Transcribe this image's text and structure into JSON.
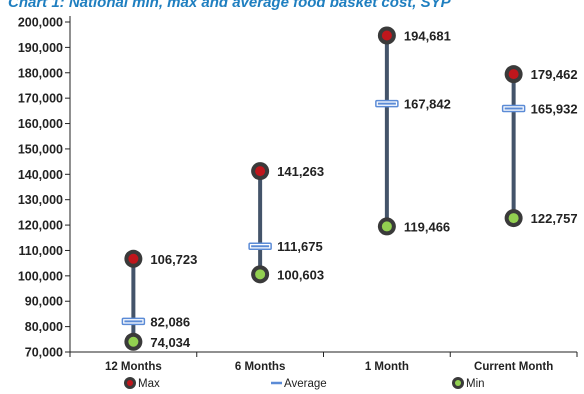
{
  "title": "Chart 1: National min, max and average food basket cost, SYP",
  "chart_data": {
    "type": "high-low",
    "categories": [
      "12 Months",
      "6 Months",
      "1 Month",
      "Current Month"
    ],
    "series": [
      {
        "name": "Max",
        "values": [
          106723,
          141263,
          194681,
          179462
        ],
        "labels": [
          "106,723",
          "141,263",
          "194,681",
          "179,462"
        ]
      },
      {
        "name": "Average",
        "values": [
          82086,
          111675,
          167842,
          165932
        ],
        "labels": [
          "82,086",
          "111,675",
          "167,842",
          "165,932"
        ]
      },
      {
        "name": "Min",
        "values": [
          74034,
          100603,
          119466,
          122757
        ],
        "labels": [
          "74,034",
          "100,603",
          "119,466",
          "122,757"
        ]
      }
    ],
    "ylim": [
      70000,
      200000
    ],
    "yticks": [
      70000,
      80000,
      90000,
      100000,
      110000,
      120000,
      130000,
      140000,
      150000,
      160000,
      170000,
      180000,
      190000,
      200000
    ],
    "ytick_labels": [
      "70,000",
      "80,000",
      "90,000",
      "100,000",
      "110,000",
      "120,000",
      "130,000",
      "140,000",
      "150,000",
      "160,000",
      "170,000",
      "180,000",
      "190,000",
      "200,000"
    ],
    "legend": {
      "position": "bottom",
      "items": [
        "Max",
        "Average",
        "Min"
      ]
    },
    "grid": false,
    "colors": {
      "max": "#c0161c",
      "min": "#92d050",
      "marker_ring": "#3a3a3a",
      "average": "#5b8bd6",
      "line": "#44546a",
      "axis": "#222222"
    }
  }
}
